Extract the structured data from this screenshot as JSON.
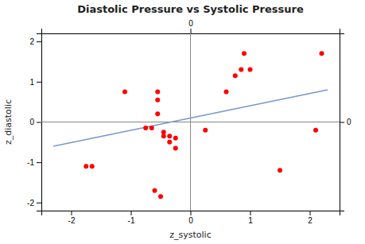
{
  "chart_data": {
    "type": "scatter",
    "title": "Diastolic Pressure vs Systolic Pressure",
    "x_label": "z_systolic",
    "y_label": "z_diastolic",
    "series": [
      {
        "type": "scatter",
        "color": "#ff0000",
        "x": [
          -1.75,
          -1.65,
          -1.1,
          -0.75,
          -0.65,
          -0.55,
          -0.55,
          -0.55,
          -0.45,
          -0.45,
          -0.35,
          -0.35,
          -0.25,
          -0.25,
          -0.6,
          -0.5,
          0.25,
          0.6,
          0.75,
          0.85,
          0.9,
          1.0,
          1.5,
          2.1,
          2.2
        ],
        "values": [
          -1.1,
          -1.1,
          0.75,
          -0.15,
          -0.15,
          0.2,
          0.55,
          0.75,
          -0.25,
          -0.35,
          -0.35,
          -0.5,
          -0.65,
          -0.4,
          -1.7,
          -1.85,
          -0.2,
          0.75,
          1.15,
          1.3,
          1.7,
          1.3,
          -1.2,
          -0.2,
          1.7
        ]
      },
      {
        "type": "line",
        "color": "#7799cc",
        "x": [
          -2.3,
          2.3
        ],
        "values": [
          -0.6,
          0.8
        ]
      }
    ],
    "xlim": [
      -2.5,
      2.5
    ],
    "ylim": [
      -2.2,
      2.2
    ],
    "xticks": [
      -2,
      -1,
      0,
      1,
      2
    ],
    "yticks": [
      -2,
      -1,
      0,
      1,
      2
    ],
    "x2lim": [
      -2.5,
      2.5
    ],
    "x2ticks": [
      0
    ],
    "y2lim": [
      -2.2,
      2.2
    ],
    "y2ticks": [
      0
    ]
  }
}
